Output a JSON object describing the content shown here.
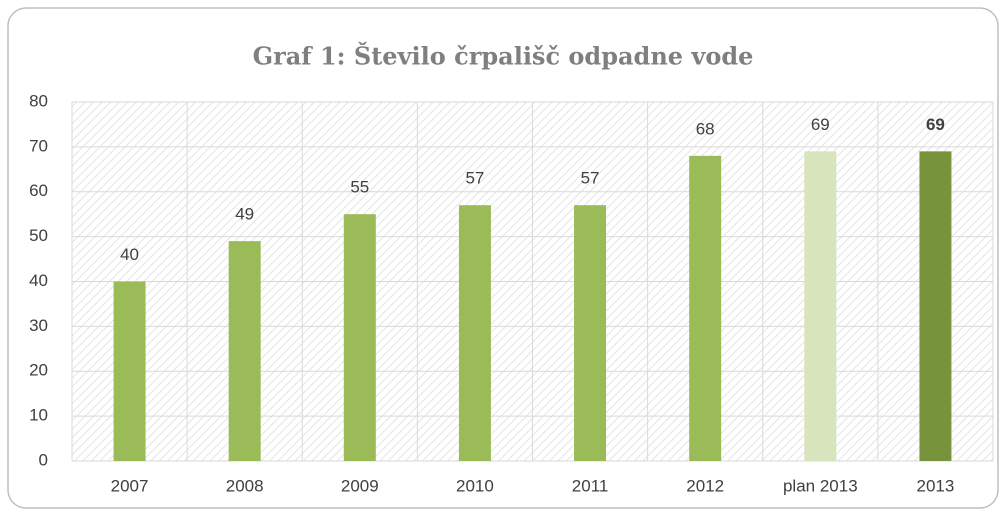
{
  "chart_data": {
    "type": "bar",
    "title": "Graf 1: Število črpališč odpadne vode",
    "categories": [
      "2007",
      "2008",
      "2009",
      "2010",
      "2011",
      "2012",
      "plan 2013",
      "2013"
    ],
    "values": [
      40,
      49,
      55,
      57,
      57,
      68,
      69,
      69
    ],
    "colors": [
      "#9bbb59",
      "#9bbb59",
      "#9bbb59",
      "#9bbb59",
      "#9bbb59",
      "#9bbb59",
      "#d7e4bc",
      "#77933c"
    ],
    "value_label_bold": [
      false,
      false,
      false,
      false,
      false,
      false,
      false,
      true
    ],
    "ylim": [
      0,
      80
    ],
    "yticks": [
      0,
      10,
      20,
      30,
      40,
      50,
      60,
      70,
      80
    ],
    "grid": true
  }
}
